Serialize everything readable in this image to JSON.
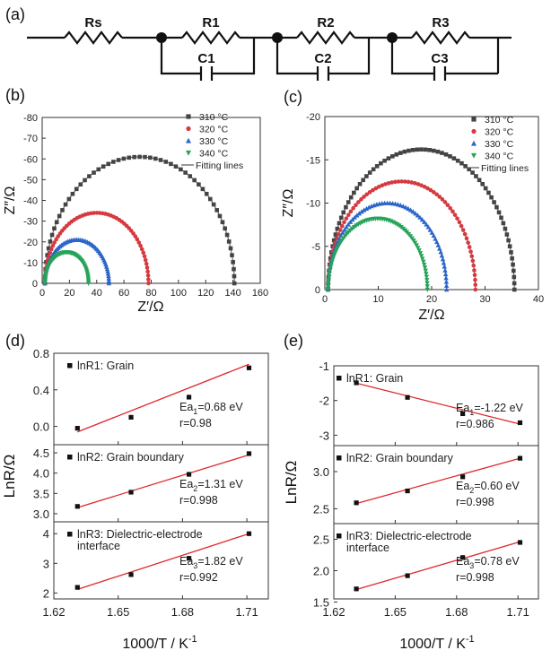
{
  "circuit": {
    "panel_label": "(a)",
    "elements": [
      "Rs",
      "R1",
      "C1",
      "R2",
      "C2",
      "R3",
      "C3"
    ]
  },
  "chart_data": [
    {
      "panel": "(b)",
      "type": "scatter",
      "xlabel": "Z′/Ω",
      "ylabel": "Z″/Ω",
      "xlim": [
        0,
        160
      ],
      "ylim": [
        0,
        -80
      ],
      "xticks": [
        "0",
        "20",
        "40",
        "60",
        "80",
        "100",
        "120",
        "140",
        "160"
      ],
      "yticks": [
        "0",
        "-10",
        "-20",
        "-30",
        "-40",
        "-50",
        "-60",
        "-70",
        "-80"
      ],
      "fit_label": "Fitting lines",
      "series": [
        {
          "name": "310 °C",
          "color": "#444444",
          "marker": "square",
          "r0": 2,
          "r1": 141,
          "peak": 61
        },
        {
          "name": "320 °C",
          "color": "#d6393f",
          "marker": "circle",
          "r0": 2,
          "r1": 78,
          "peak": 34
        },
        {
          "name": "330 °C",
          "color": "#2a66c9",
          "marker": "triangle",
          "r0": 2,
          "r1": 49,
          "peak": 21
        },
        {
          "name": "340 °C",
          "color": "#27a35a",
          "marker": "triangle-down",
          "r0": 2,
          "r1": 34,
          "peak": 15
        }
      ]
    },
    {
      "panel": "(c)",
      "type": "scatter",
      "xlabel": "Z′/Ω",
      "ylabel": "Z″/Ω",
      "xlim": [
        0,
        40
      ],
      "ylim": [
        0,
        -20
      ],
      "xticks": [
        "0",
        "10",
        "20",
        "30",
        "40"
      ],
      "yticks": [
        "0",
        "-5",
        "-10",
        "-15",
        "-20"
      ],
      "fit_label": "Fitting lines",
      "series": [
        {
          "name": "310 °C",
          "color": "#444444",
          "marker": "square",
          "r0": 0.6,
          "r1": 35.5,
          "peak": 16.2
        },
        {
          "name": "320 °C",
          "color": "#d6393f",
          "marker": "circle",
          "r0": 0.6,
          "r1": 28.2,
          "peak": 12.5
        },
        {
          "name": "330 °C",
          "color": "#2a66c9",
          "marker": "triangle",
          "r0": 0.6,
          "r1": 22.8,
          "peak": 10.0
        },
        {
          "name": "340 °C",
          "color": "#27a35a",
          "marker": "triangle-down",
          "r0": 0.6,
          "r1": 19.2,
          "peak": 8.2
        }
      ]
    },
    {
      "panel": "(d)",
      "type": "scatter",
      "xlabel": "1000/T / K",
      "xlabel_sup": "-1",
      "ylabel": "LnR/Ω",
      "xlim": [
        1.62,
        1.72
      ],
      "xticks": [
        1.62,
        1.65,
        1.68,
        1.71
      ],
      "xtick_labels": [
        "1.62",
        "1.65",
        "1.68",
        "1.71"
      ],
      "subplots": [
        {
          "legend": "lnR1: Grain",
          "ylim": [
            -0.2,
            0.8
          ],
          "yticks": [
            0.0,
            0.4,
            0.8
          ],
          "ytick_labels": [
            "0.0",
            "0.4",
            "0.8"
          ],
          "x": [
            1.631,
            1.656,
            1.683,
            1.711
          ],
          "y": [
            -0.02,
            0.1,
            0.32,
            0.64
          ],
          "fit": [
            -0.06,
            0.68
          ],
          "ea_sub": "1",
          "ea_value": "=0.68 eV",
          "r": "r=0.98"
        },
        {
          "legend": "lnR2: Grain boundary",
          "ylim": [
            2.8,
            4.7
          ],
          "yticks": [
            3.0,
            3.5,
            4.0,
            4.5
          ],
          "ytick_labels": [
            "3.0",
            "3.5",
            "4.0",
            "4.5"
          ],
          "x": [
            1.631,
            1.656,
            1.683,
            1.711
          ],
          "y": [
            3.18,
            3.53,
            3.97,
            4.48
          ],
          "fit": [
            3.15,
            4.45
          ],
          "ea_sub": "2",
          "ea_value": "=1.31 eV",
          "r": "r=0.998"
        },
        {
          "legend": "lnR3: Dielectric-electrode",
          "legend2": "interface",
          "ylim": [
            1.8,
            4.4
          ],
          "yticks": [
            2,
            3,
            4
          ],
          "ytick_labels": [
            "2",
            "3",
            "4"
          ],
          "x": [
            1.631,
            1.656,
            1.683,
            1.711
          ],
          "y": [
            2.19,
            2.62,
            3.17,
            4.0
          ],
          "fit": [
            2.12,
            4.0
          ],
          "ea_sub": "3",
          "ea_value": "=1.82 eV",
          "r": "r=0.992"
        }
      ]
    },
    {
      "panel": "(e)",
      "type": "scatter",
      "xlabel": "1000/T / K",
      "xlabel_sup": "-1",
      "ylabel": "LnR/Ω",
      "xlim": [
        1.62,
        1.72
      ],
      "xticks": [
        1.62,
        1.65,
        1.68,
        1.71
      ],
      "xtick_labels": [
        "1.62",
        "1.65",
        "1.68",
        "1.71"
      ],
      "subplots": [
        {
          "legend": "lnR1: Grain",
          "ylim": [
            -3.3,
            -1.0
          ],
          "yticks": [
            -1,
            -2,
            -3
          ],
          "ytick_labels": [
            "-1",
            "-2",
            "-3"
          ],
          "x": [
            1.631,
            1.656,
            1.683,
            1.711
          ],
          "y": [
            -1.49,
            -1.91,
            -2.38,
            -2.64
          ],
          "fit": [
            -1.5,
            -2.68
          ],
          "ea_sub": "1",
          "ea_value": "=-1.22 eV",
          "r": "r=0.986"
        },
        {
          "legend": "lnR2: Grain boundary",
          "ylim": [
            2.3,
            3.35
          ],
          "yticks": [
            2.5,
            3.0
          ],
          "ytick_labels": [
            "2.5",
            "3.0"
          ],
          "x": [
            1.631,
            1.656,
            1.683,
            1.711
          ],
          "y": [
            2.58,
            2.74,
            2.93,
            3.18
          ],
          "fit": [
            2.57,
            3.18
          ],
          "ea_sub": "2",
          "ea_value": "=0.60 eV",
          "r": "r=0.998"
        },
        {
          "legend": "lnR3: Dielectric-electrode",
          "legend2": "interface",
          "ylim": [
            1.55,
            2.75
          ],
          "yticks": [
            1.5,
            2.0,
            2.5
          ],
          "ytick_labels": [
            "1.5",
            "2.0",
            "2.5"
          ],
          "x": [
            1.631,
            1.656,
            1.683,
            1.711
          ],
          "y": [
            1.71,
            1.92,
            2.21,
            2.45
          ],
          "fit": [
            1.7,
            2.46
          ],
          "ea_sub": "3",
          "ea_value": "=0.78 eV",
          "r": "r=0.998"
        }
      ]
    }
  ]
}
